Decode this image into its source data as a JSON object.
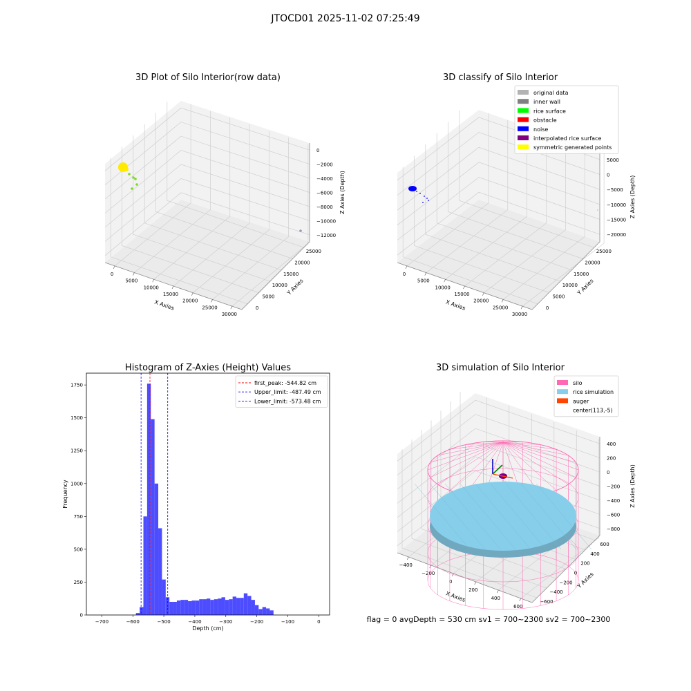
{
  "figure": {
    "title": "JTOCD01 2025-11-02 07:25:49",
    "status": "flag = 0     avgDepth = 530 cm  sv1 = 700~2300  sv2 = 700~2300"
  },
  "colors": {
    "pane_wall": "#f2f2f2",
    "pane_floor": "#ebebeb",
    "grid": "#cfcfcf",
    "yellow": "#ffea00",
    "green": "#7ddc1f",
    "blue": "#0000ff",
    "hist_fill": "#4d4dff",
    "peak": "#ff0000",
    "limit": "#0000ff",
    "silo": "#ff69b4",
    "rice": "#87ceeb",
    "auger": "#ff4500",
    "legend_original": "#b3b3b3",
    "legend_wall": "#808080",
    "legend_rice": "#00ff00",
    "legend_obstacle": "#ff0000",
    "legend_noise": "#0000ff",
    "legend_interp": "#800080",
    "legend_sym": "#ffff00"
  },
  "chart_data": [
    {
      "type": "scatter",
      "title": "3D Plot of Silo Interior(row data)",
      "xlabel": "X Axies",
      "ylabel": "Y Axies",
      "zlabel": "Z Axies (Depth)",
      "xticks": [
        "0",
        "5000",
        "10000",
        "15000",
        "20000",
        "25000",
        "30000"
      ],
      "yticks": [
        "0",
        "5000",
        "10000",
        "15000",
        "20000",
        "25000"
      ],
      "zticks": [
        "0",
        "−2000",
        "−4000",
        "−6000",
        "−8000",
        "−10000",
        "−12000"
      ],
      "xlim": [
        0,
        30000
      ],
      "ylim": [
        0,
        25000
      ],
      "zlim": [
        -12000,
        0
      ]
    },
    {
      "type": "scatter",
      "title": "3D classify of Silo Interior",
      "xlabel": "X Axies",
      "ylabel": "Y Axies",
      "zlabel": "Z Axies (Depth)",
      "xticks": [
        "0",
        "5000",
        "10000",
        "15000",
        "20000",
        "25000",
        "30000"
      ],
      "yticks": [
        "0",
        "5000",
        "10000",
        "15000",
        "20000",
        "25000"
      ],
      "zticks": [
        "5000",
        "0",
        "−5000",
        "−10000",
        "−15000",
        "−20000"
      ],
      "legend": [
        "original data",
        "inner wall",
        "rice surface",
        "obstacle",
        "noise",
        "interpolated rice surface",
        "symmetric generated points"
      ],
      "legend_position": "top-right"
    },
    {
      "type": "bar",
      "title": "Histogram of Z-Axies (Height) Values",
      "xlabel": "Depth (cm)",
      "ylabel": "Frequency",
      "xticks": [
        "−700",
        "−600",
        "−500",
        "−400",
        "−300",
        "−200",
        "−100",
        "0"
      ],
      "yticks": [
        "0",
        "250",
        "500",
        "750",
        "1000",
        "1250",
        "1500",
        "1750"
      ],
      "xlim": [
        -750,
        35
      ],
      "ylim": [
        0,
        1840
      ],
      "bin_width": 12,
      "bin_edges_start": -590,
      "values": [
        15,
        60,
        750,
        1760,
        1490,
        1000,
        660,
        270,
        135,
        100,
        100,
        110,
        115,
        115,
        105,
        110,
        110,
        120,
        120,
        125,
        115,
        120,
        125,
        135,
        115,
        120,
        140,
        130,
        130,
        165,
        145,
        115,
        75,
        45,
        60,
        50,
        35
      ],
      "vlines": [
        {
          "x": -544.82,
          "style": "peak",
          "label": "first_peak: -544.82 cm"
        },
        {
          "x": -487.49,
          "style": "limit",
          "label": "Upper_limit: -487.49 cm"
        },
        {
          "x": -573.48,
          "style": "limit",
          "label": "Lower_limit: -573.48 cm"
        }
      ],
      "legend_position": "top-right"
    },
    {
      "type": "scatter",
      "title": "3D simulation of Silo Interior",
      "xlabel": "X Axies",
      "ylabel": "Y Axies",
      "zlabel": "Z Axies (Depth)",
      "xticks": [
        "−400",
        "−200",
        "0",
        "200",
        "400",
        "600"
      ],
      "yticks": [
        "−600",
        "−400",
        "−200",
        "0",
        "200",
        "400",
        "600"
      ],
      "zticks": [
        "400",
        "200",
        "0",
        "−200",
        "−400",
        "−600",
        "−800"
      ],
      "legend": [
        "silo",
        "rice simulation",
        "auger",
        "center(113,-5)"
      ],
      "legend_position": "top-right"
    }
  ]
}
